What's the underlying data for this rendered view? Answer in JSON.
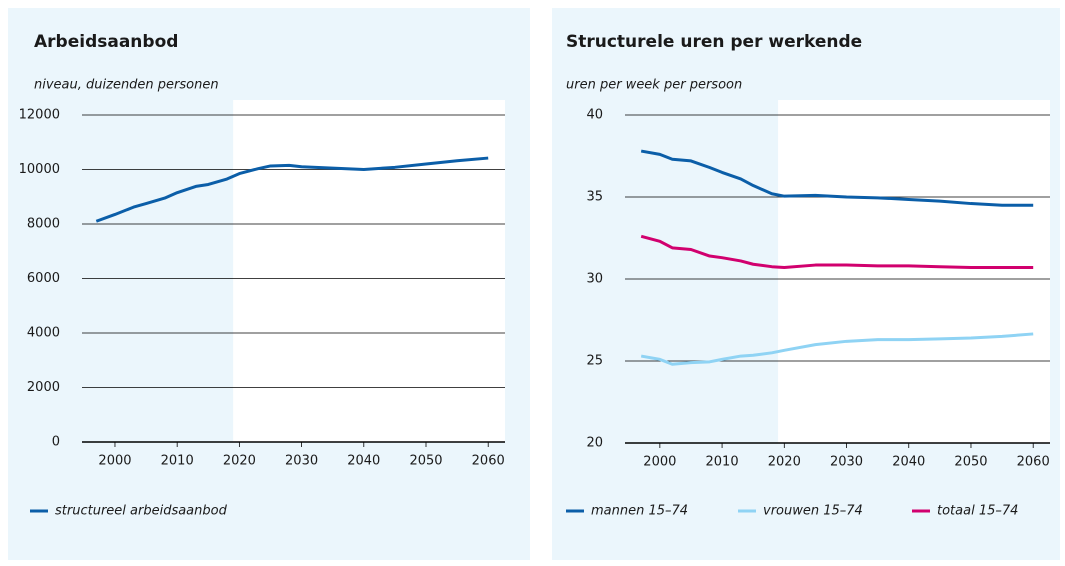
{
  "chart_data": [
    {
      "type": "line",
      "title": "Arbeidsaanbod",
      "subtitle": "niveau, duizenden personen",
      "x": [
        1997,
        2000,
        2003,
        2005,
        2008,
        2010,
        2013,
        2015,
        2018,
        2020,
        2023,
        2025,
        2028,
        2030,
        2035,
        2040,
        2045,
        2050,
        2055,
        2060
      ],
      "series": [
        {
          "name": "structureel arbeidsaanbod",
          "color": "#0b5ea8",
          "values": [
            8100,
            8350,
            8620,
            8750,
            8950,
            9150,
            9380,
            9450,
            9650,
            9850,
            10030,
            10130,
            10150,
            10100,
            10050,
            10000,
            10080,
            10200,
            10320,
            10420
          ]
        }
      ],
      "xlim": [
        1994.7,
        2062.7
      ],
      "ylim": [
        0,
        12000
      ],
      "xticks": [
        2000,
        2010,
        2020,
        2030,
        2040,
        2050,
        2060
      ],
      "yticks": [
        0,
        2000,
        4000,
        6000,
        8000,
        10000,
        12000
      ],
      "grid": true,
      "projection_start": 2019,
      "legend": "bottom-left"
    },
    {
      "type": "line",
      "title": "Structurele uren per werkende",
      "subtitle": "uren per week per persoon",
      "x": [
        1997,
        2000,
        2002,
        2005,
        2008,
        2010,
        2013,
        2015,
        2018,
        2020,
        2025,
        2030,
        2035,
        2040,
        2045,
        2050,
        2055,
        2060
      ],
      "series": [
        {
          "name": "mannen 15–74",
          "color": "#0b5ea8",
          "values": [
            37.8,
            37.6,
            37.3,
            37.2,
            36.8,
            36.5,
            36.1,
            35.7,
            35.2,
            35.05,
            35.1,
            35.0,
            34.95,
            34.85,
            34.75,
            34.6,
            34.5,
            34.5
          ]
        },
        {
          "name": "vrouwen 15–74",
          "color": "#8fd3f4",
          "values": [
            25.3,
            25.1,
            24.8,
            24.9,
            24.95,
            25.1,
            25.3,
            25.35,
            25.5,
            25.65,
            26.0,
            26.2,
            26.3,
            26.3,
            26.35,
            26.4,
            26.5,
            26.65
          ]
        },
        {
          "name": "totaal 15–74",
          "color": "#d1006e",
          "values": [
            32.6,
            32.3,
            31.9,
            31.8,
            31.4,
            31.3,
            31.1,
            30.9,
            30.75,
            30.7,
            30.85,
            30.85,
            30.8,
            30.8,
            30.75,
            30.7,
            30.7,
            30.7
          ]
        }
      ],
      "xlim": [
        1994.4,
        2062.7
      ],
      "ylim": [
        20,
        40
      ],
      "xticks": [
        2000,
        2010,
        2020,
        2030,
        2040,
        2050,
        2060
      ],
      "yticks": [
        20,
        25,
        30,
        35,
        40
      ],
      "grid": true,
      "projection_start": 2019,
      "legend": "bottom-left"
    }
  ]
}
